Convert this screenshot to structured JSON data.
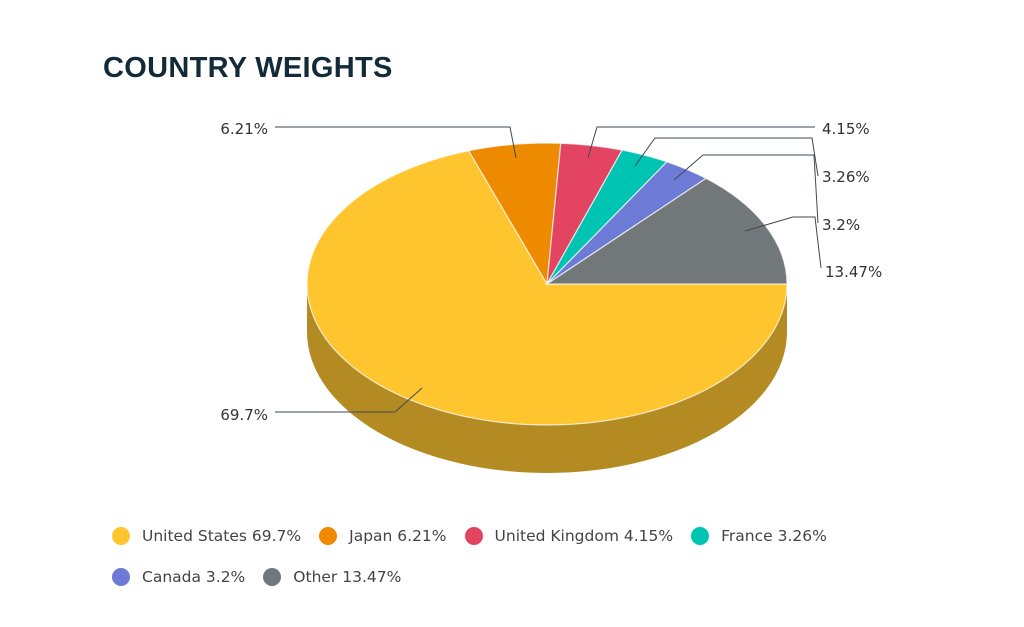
{
  "chart_data": {
    "type": "pie",
    "style": "3d",
    "title": "COUNTRY WEIGHTS",
    "slices": [
      {
        "name": "United States",
        "value": 69.7,
        "label": "69.7%",
        "legend": "United States 69.7%",
        "color": "#fec52e",
        "side": "#b38b22"
      },
      {
        "name": "Japan",
        "value": 6.21,
        "label": "6.21%",
        "legend": "Japan 6.21%",
        "color": "#ee8a00",
        "side": "#a86200"
      },
      {
        "name": "United Kingdom",
        "value": 4.15,
        "label": "4.15%",
        "legend": "United Kingdom 4.15%",
        "color": "#e24462",
        "side": "#a03046"
      },
      {
        "name": "France",
        "value": 3.26,
        "label": "3.26%",
        "legend": "France 3.26%",
        "color": "#00c4b2",
        "side": "#008a7e"
      },
      {
        "name": "Canada",
        "value": 3.2,
        "label": "3.2%",
        "legend": "Canada 3.2%",
        "color": "#6d7bd6",
        "side": "#4d5798"
      },
      {
        "name": "Other",
        "value": 13.47,
        "label": "13.47%",
        "legend": "Other 13.47%",
        "color": "#72777a",
        "side": "#505456"
      }
    ],
    "legend_position": "bottom"
  }
}
